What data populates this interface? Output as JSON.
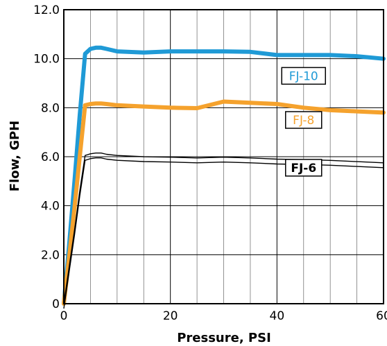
{
  "chart_data": {
    "type": "line",
    "xlabel": "Pressure, PSI",
    "ylabel": "Flow, GPH",
    "xlim": [
      0,
      60
    ],
    "ylim": [
      0,
      12
    ],
    "x_ticks": [
      "0",
      "20",
      "40",
      "60"
    ],
    "y_ticks": [
      "0",
      "2.0",
      "4.0",
      "6.0",
      "8.0",
      "10.0",
      "12.0"
    ],
    "grid": true,
    "series": [
      {
        "name": "FJ-10",
        "color": "#1f9ad6",
        "x": [
          0,
          1,
          2,
          3,
          4,
          5,
          6,
          7,
          8,
          10,
          15,
          20,
          25,
          30,
          35,
          40,
          45,
          50,
          55,
          60
        ],
        "y": [
          0,
          2.4,
          5.0,
          7.7,
          10.2,
          10.4,
          10.45,
          10.45,
          10.4,
          10.3,
          10.25,
          10.3,
          10.3,
          10.3,
          10.28,
          10.15,
          10.15,
          10.15,
          10.1,
          10.0
        ]
      },
      {
        "name": "FJ-8",
        "color": "#f5a22d",
        "x": [
          0,
          1,
          2,
          3,
          4,
          5,
          6,
          7,
          8,
          10,
          15,
          20,
          25,
          30,
          35,
          40,
          45,
          50,
          55,
          60
        ],
        "y": [
          0,
          1.9,
          3.9,
          6.0,
          8.1,
          8.15,
          8.17,
          8.17,
          8.15,
          8.1,
          8.05,
          8.0,
          7.98,
          8.25,
          8.2,
          8.15,
          8.0,
          7.9,
          7.85,
          7.8
        ]
      },
      {
        "name": "FJ-6",
        "color": "#000000",
        "x": [
          0,
          1,
          2,
          3,
          4,
          5,
          6,
          7,
          8,
          10,
          15,
          20,
          25,
          30,
          35,
          40,
          45,
          50,
          55,
          60
        ],
        "y": [
          0,
          1.5,
          3.0,
          4.6,
          6.05,
          6.12,
          6.15,
          6.15,
          6.1,
          6.05,
          6.0,
          5.98,
          5.95,
          5.98,
          5.95,
          5.9,
          5.88,
          5.85,
          5.8,
          5.75
        ]
      }
    ]
  }
}
